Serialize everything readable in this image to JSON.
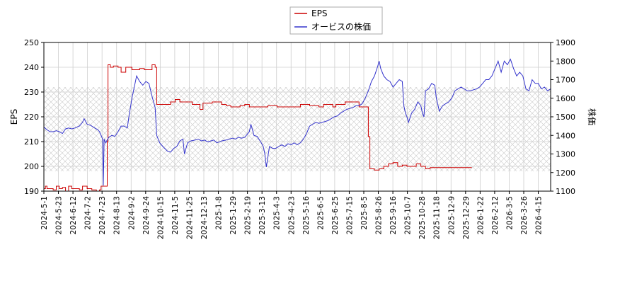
{
  "chart_data": {
    "type": "line",
    "ylabel_left": "EPS",
    "ylabel_right": "株価",
    "ylim_left": [
      190,
      250
    ],
    "ylim_right": [
      1100,
      1900
    ],
    "yticks_left": [
      190,
      200,
      210,
      220,
      230,
      240,
      250
    ],
    "yticks_right": [
      1100,
      1200,
      1300,
      1400,
      1500,
      1600,
      1700,
      1800,
      1900
    ],
    "x_tick_labels": [
      "2024-5-1",
      "2024-5-23",
      "2024-6-12",
      "2024-7-2",
      "2024-7-23",
      "2024-8-13",
      "2024-9-2",
      "2024-9-24",
      "2024-10-15",
      "2024-11-5",
      "2024-11-25",
      "2024-12-13",
      "2025-1-8",
      "2025-1-29",
      "2025-2-19",
      "2025-3-13",
      "2025-4-3",
      "2025-4-23",
      "2025-5-16",
      "2025-6-5",
      "2025-6-25",
      "2025-7-15",
      "2025-8-5",
      "2025-8-26",
      "2025-9-16",
      "2025-10-7",
      "2025-10-28",
      "2025-11-18",
      "2025-12-9",
      "2025-12-29",
      "2026-1-22",
      "2026-2-12",
      "2026-3-5",
      "2026-3-26",
      "2026-4-15"
    ],
    "grid": true,
    "legend_position": "top-center",
    "hatched_band_left": [
      198,
      232
    ],
    "series": [
      {
        "name": "EPS",
        "axis": "left",
        "color": "#cc0000",
        "points": [
          [
            0,
            191
          ],
          [
            1,
            192
          ],
          [
            2,
            191
          ],
          [
            4,
            191
          ],
          [
            6,
            190.5
          ],
          [
            8,
            192
          ],
          [
            10,
            191
          ],
          [
            12,
            191.5
          ],
          [
            14,
            190
          ],
          [
            16,
            192
          ],
          [
            18,
            191
          ],
          [
            20,
            191
          ],
          [
            23,
            190.5
          ],
          [
            25,
            192
          ],
          [
            28,
            191
          ],
          [
            31,
            190.5
          ],
          [
            34,
            190
          ],
          [
            36,
            190.5
          ],
          [
            37,
            192
          ],
          [
            40,
            192
          ],
          [
            41,
            210
          ],
          [
            41.5,
            241
          ],
          [
            43,
            240
          ],
          [
            45,
            240.5
          ],
          [
            48,
            240
          ],
          [
            50,
            238
          ],
          [
            53,
            240
          ],
          [
            55,
            240
          ],
          [
            57,
            239
          ],
          [
            60,
            239
          ],
          [
            62,
            239.5
          ],
          [
            65,
            239
          ],
          [
            68,
            239
          ],
          [
            70,
            241
          ],
          [
            72,
            240
          ],
          [
            73,
            225
          ],
          [
            76,
            225
          ],
          [
            80,
            225
          ],
          [
            82,
            226
          ],
          [
            85,
            227
          ],
          [
            88,
            226
          ],
          [
            90,
            226
          ],
          [
            93,
            226
          ],
          [
            96,
            225
          ],
          [
            98,
            225
          ],
          [
            101,
            223
          ],
          [
            103,
            225.5
          ],
          [
            106,
            225.5
          ],
          [
            109,
            226
          ],
          [
            112,
            226
          ],
          [
            115,
            225
          ],
          [
            118,
            224.5
          ],
          [
            121,
            224
          ],
          [
            124,
            224
          ],
          [
            127,
            224.5
          ],
          [
            130,
            225
          ],
          [
            133,
            224
          ],
          [
            136,
            224
          ],
          [
            139,
            224
          ],
          [
            142,
            224
          ],
          [
            145,
            224.5
          ],
          [
            148,
            224.5
          ],
          [
            151,
            224
          ],
          [
            154,
            224
          ],
          [
            157,
            224
          ],
          [
            160,
            224
          ],
          [
            163,
            224
          ],
          [
            166,
            225
          ],
          [
            169,
            225
          ],
          [
            172,
            224.5
          ],
          [
            175,
            224.5
          ],
          [
            178,
            224
          ],
          [
            181,
            225
          ],
          [
            184,
            225
          ],
          [
            187,
            224
          ],
          [
            189,
            225
          ],
          [
            192,
            225
          ],
          [
            195,
            226
          ],
          [
            198,
            226
          ],
          [
            201,
            226
          ],
          [
            204,
            224
          ],
          [
            207,
            224
          ],
          [
            209,
            224
          ],
          [
            210,
            212
          ],
          [
            211,
            199
          ],
          [
            214,
            198.5
          ],
          [
            217,
            199
          ],
          [
            220,
            200
          ],
          [
            223,
            201
          ],
          [
            226,
            201.5
          ],
          [
            229,
            200
          ],
          [
            232,
            200.5
          ],
          [
            235,
            200
          ],
          [
            238,
            200
          ],
          [
            241,
            201
          ],
          [
            244,
            200
          ],
          [
            247,
            199
          ],
          [
            250,
            199.5
          ],
          [
            253,
            199.5
          ],
          [
            256,
            199.5
          ],
          [
            259,
            199.5
          ],
          [
            262,
            199.5
          ],
          [
            265,
            199.5
          ],
          [
            268,
            199.5
          ],
          [
            271,
            199.5
          ],
          [
            274,
            199.5
          ],
          [
            277,
            199.5
          ]
        ]
      },
      {
        "name": "オービスの株価",
        "axis": "right",
        "color": "#3333cc",
        "points": [
          [
            0,
            1445
          ],
          [
            2,
            1430
          ],
          [
            4,
            1420
          ],
          [
            6,
            1420
          ],
          [
            8,
            1425
          ],
          [
            10,
            1420
          ],
          [
            12,
            1410
          ],
          [
            14,
            1435
          ],
          [
            16,
            1440
          ],
          [
            18,
            1435
          ],
          [
            20,
            1440
          ],
          [
            23,
            1450
          ],
          [
            25,
            1470
          ],
          [
            26,
            1490
          ],
          [
            28,
            1460
          ],
          [
            30,
            1455
          ],
          [
            33,
            1440
          ],
          [
            35,
            1430
          ],
          [
            36,
            1420
          ],
          [
            38,
            1380
          ],
          [
            38.5,
            1130
          ],
          [
            39,
            1380
          ],
          [
            40,
            1360
          ],
          [
            42,
            1390
          ],
          [
            44,
            1400
          ],
          [
            46,
            1395
          ],
          [
            48,
            1420
          ],
          [
            50,
            1450
          ],
          [
            52,
            1450
          ],
          [
            54,
            1440
          ],
          [
            55,
            1500
          ],
          [
            57,
            1600
          ],
          [
            59,
            1680
          ],
          [
            60,
            1720
          ],
          [
            62,
            1690
          ],
          [
            64,
            1670
          ],
          [
            66,
            1690
          ],
          [
            68,
            1680
          ],
          [
            70,
            1610
          ],
          [
            72,
            1550
          ],
          [
            73,
            1400
          ],
          [
            75,
            1360
          ],
          [
            77,
            1340
          ],
          [
            80,
            1315
          ],
          [
            82,
            1310
          ],
          [
            84,
            1330
          ],
          [
            86,
            1340
          ],
          [
            88,
            1370
          ],
          [
            90,
            1380
          ],
          [
            91,
            1300
          ],
          [
            93,
            1360
          ],
          [
            95,
            1370
          ],
          [
            98,
            1375
          ],
          [
            100,
            1380
          ],
          [
            102,
            1370
          ],
          [
            104,
            1375
          ],
          [
            106,
            1365
          ],
          [
            108,
            1370
          ],
          [
            110,
            1375
          ],
          [
            112,
            1360
          ],
          [
            115,
            1370
          ],
          [
            118,
            1375
          ],
          [
            120,
            1380
          ],
          [
            122,
            1385
          ],
          [
            124,
            1380
          ],
          [
            126,
            1390
          ],
          [
            128,
            1385
          ],
          [
            130,
            1390
          ],
          [
            133,
            1420
          ],
          [
            134,
            1460
          ],
          [
            136,
            1400
          ],
          [
            138,
            1395
          ],
          [
            140,
            1370
          ],
          [
            142,
            1340
          ],
          [
            143,
            1300
          ],
          [
            144,
            1230
          ],
          [
            146,
            1340
          ],
          [
            148,
            1330
          ],
          [
            150,
            1330
          ],
          [
            152,
            1340
          ],
          [
            154,
            1350
          ],
          [
            156,
            1340
          ],
          [
            158,
            1355
          ],
          [
            160,
            1350
          ],
          [
            162,
            1360
          ],
          [
            164,
            1350
          ],
          [
            166,
            1360
          ],
          [
            168,
            1380
          ],
          [
            170,
            1410
          ],
          [
            172,
            1450
          ],
          [
            174,
            1460
          ],
          [
            176,
            1470
          ],
          [
            178,
            1465
          ],
          [
            180,
            1470
          ],
          [
            182,
            1475
          ],
          [
            184,
            1480
          ],
          [
            186,
            1490
          ],
          [
            188,
            1500
          ],
          [
            190,
            1505
          ],
          [
            192,
            1520
          ],
          [
            194,
            1530
          ],
          [
            196,
            1540
          ],
          [
            198,
            1545
          ],
          [
            200,
            1550
          ],
          [
            202,
            1560
          ],
          [
            204,
            1560
          ],
          [
            206,
            1570
          ],
          [
            208,
            1600
          ],
          [
            210,
            1640
          ],
          [
            212,
            1690
          ],
          [
            214,
            1720
          ],
          [
            216,
            1770
          ],
          [
            217,
            1800
          ],
          [
            218,
            1760
          ],
          [
            220,
            1720
          ],
          [
            222,
            1700
          ],
          [
            224,
            1690
          ],
          [
            226,
            1660
          ],
          [
            228,
            1680
          ],
          [
            230,
            1700
          ],
          [
            232,
            1690
          ],
          [
            233,
            1560
          ],
          [
            234,
            1520
          ],
          [
            235,
            1500
          ],
          [
            236,
            1470
          ],
          [
            238,
            1520
          ],
          [
            240,
            1540
          ],
          [
            242,
            1580
          ],
          [
            244,
            1560
          ],
          [
            245,
            1520
          ],
          [
            246,
            1500
          ],
          [
            247,
            1640
          ],
          [
            249,
            1650
          ],
          [
            251,
            1680
          ],
          [
            253,
            1670
          ],
          [
            254,
            1600
          ],
          [
            256,
            1530
          ],
          [
            258,
            1560
          ],
          [
            260,
            1570
          ],
          [
            262,
            1580
          ],
          [
            264,
            1600
          ],
          [
            266,
            1640
          ],
          [
            268,
            1650
          ],
          [
            270,
            1660
          ],
          [
            272,
            1650
          ],
          [
            274,
            1640
          ],
          [
            276,
            1640
          ],
          [
            278,
            1645
          ],
          [
            280,
            1650
          ],
          [
            282,
            1660
          ],
          [
            284,
            1680
          ],
          [
            286,
            1700
          ],
          [
            288,
            1700
          ],
          [
            290,
            1720
          ],
          [
            292,
            1760
          ],
          [
            294,
            1800
          ],
          [
            296,
            1740
          ],
          [
            298,
            1800
          ],
          [
            300,
            1780
          ],
          [
            302,
            1810
          ],
          [
            304,
            1760
          ],
          [
            306,
            1720
          ],
          [
            308,
            1740
          ],
          [
            310,
            1720
          ],
          [
            312,
            1650
          ],
          [
            314,
            1640
          ],
          [
            316,
            1700
          ],
          [
            318,
            1680
          ],
          [
            320,
            1680
          ],
          [
            322,
            1650
          ],
          [
            324,
            1660
          ],
          [
            326,
            1640
          ],
          [
            328,
            1650
          ]
        ]
      }
    ]
  }
}
